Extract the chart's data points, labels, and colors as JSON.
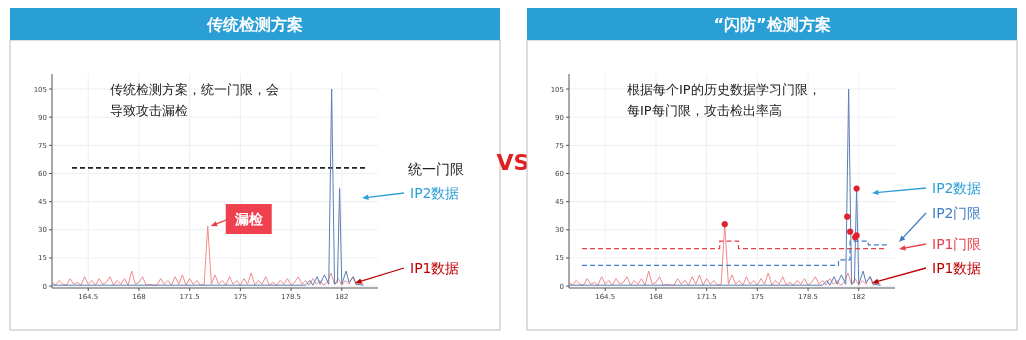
{
  "chart_data": [
    {
      "type": "line",
      "title": "传统检测方案",
      "xlim": [
        162,
        184.5
      ],
      "ylim": [
        -1,
        113
      ],
      "xticks": [
        164.5,
        168,
        171.5,
        175,
        178.5,
        182
      ],
      "yticks": [
        0,
        15,
        30,
        45,
        60,
        75,
        90,
        105
      ],
      "grid": true,
      "legend": "right",
      "marker": "none",
      "annotations": [
        "传统检测方案，统一门限，会导致攻击漏检",
        {
          "text": "漏检",
          "x": 172.75,
          "y": 32
        }
      ],
      "ref_lines": [
        {
          "axis": "y",
          "value": 63,
          "label": "统一门限",
          "color": "#222222",
          "line_style": "dashed"
        }
      ],
      "series": [
        {
          "name": "IP1数据",
          "color": "#f28b8b",
          "x": [
            162,
            162.25,
            162.5,
            162.75,
            163,
            163.25,
            163.5,
            163.75,
            164,
            164.25,
            164.5,
            164.75,
            165,
            165.25,
            165.5,
            165.75,
            166,
            166.25,
            166.5,
            166.75,
            167,
            167.25,
            167.5,
            167.75,
            168,
            168.25,
            168.5,
            168.75,
            169,
            169.25,
            169.5,
            169.75,
            170,
            170.25,
            170.5,
            170.75,
            171,
            171.25,
            171.5,
            171.75,
            172,
            172.25,
            172.5,
            172.75,
            173,
            173.25,
            173.5,
            173.75,
            174,
            174.25,
            174.5,
            174.75,
            175,
            175.25,
            175.5,
            175.75,
            176,
            176.25,
            176.5,
            176.75,
            177,
            177.25,
            177.5,
            177.75,
            178,
            178.25,
            178.5,
            178.75,
            179,
            179.25,
            179.5,
            179.75,
            180,
            180.25,
            180.5,
            180.75,
            181,
            181.25,
            181.5,
            181.75,
            182,
            182.25,
            182.5,
            182.75,
            183,
            183.25,
            183.5
          ],
          "values": [
            2,
            0.5,
            3,
            1,
            0.5,
            4,
            1,
            2,
            0.5,
            5,
            1,
            3,
            0.5,
            4,
            1,
            2,
            5,
            0.5,
            3,
            1,
            4,
            0.5,
            8,
            1,
            2,
            5,
            0.5,
            1,
            0.5,
            0.5,
            4,
            1,
            3,
            0.5,
            5,
            1,
            6,
            0.5,
            4,
            1,
            3,
            0.5,
            1,
            32,
            1,
            6,
            1,
            3,
            0.5,
            5,
            1,
            3,
            0.5,
            4,
            1,
            7,
            0.5,
            3,
            1,
            5,
            0.5,
            2,
            0.5,
            3,
            1,
            4,
            0.5,
            2,
            5,
            1,
            3,
            0.5,
            4,
            1,
            3,
            0.5,
            2,
            7,
            1,
            4,
            0.5,
            3,
            1,
            5,
            0.5,
            2,
            1
          ]
        },
        {
          "name": "IP2数据",
          "color": "#5b7fb5",
          "x": [
            162,
            179.5,
            179.8,
            180,
            180.3,
            180.5,
            180.8,
            181.1,
            181.3,
            181.5,
            181.7,
            181.85,
            182,
            182.3,
            182.5,
            182.8,
            183,
            183.5
          ],
          "values": [
            0.5,
            0.5,
            3,
            0.5,
            5,
            1,
            6,
            1,
            105,
            1,
            2,
            52,
            1,
            8,
            2,
            5,
            1,
            0.5
          ]
        }
      ]
    },
    {
      "type": "other",
      "title": "VS"
    },
    {
      "type": "line",
      "title": "“闪防”检测方案",
      "xlim": [
        162,
        184.5
      ],
      "ylim": [
        -1,
        113
      ],
      "xticks": [
        164.5,
        168,
        171.5,
        175,
        178.5,
        182
      ],
      "yticks": [
        0,
        15,
        30,
        45,
        60,
        75,
        90,
        105
      ],
      "grid": true,
      "legend": "right",
      "annotations": [
        "根据每个IP的历史数据学习门限，每IP每门限，攻击检出率高"
      ],
      "series": [
        {
          "name": "IP1数据",
          "color": "#f28b8b",
          "marker": "none",
          "x": [
            162,
            162.25,
            162.5,
            162.75,
            163,
            163.25,
            163.5,
            163.75,
            164,
            164.25,
            164.5,
            164.75,
            165,
            165.25,
            165.5,
            165.75,
            166,
            166.25,
            166.5,
            166.75,
            167,
            167.25,
            167.5,
            167.75,
            168,
            168.25,
            168.5,
            168.75,
            169,
            169.25,
            169.5,
            169.75,
            170,
            170.25,
            170.5,
            170.75,
            171,
            171.25,
            171.5,
            171.75,
            172,
            172.25,
            172.5,
            172.75,
            173,
            173.25,
            173.5,
            173.75,
            174,
            174.25,
            174.5,
            174.75,
            175,
            175.25,
            175.5,
            175.75,
            176,
            176.25,
            176.5,
            176.75,
            177,
            177.25,
            177.5,
            177.75,
            178,
            178.25,
            178.5,
            178.75,
            179,
            179.25,
            179.5,
            179.75,
            180,
            180.25,
            180.5,
            180.75,
            181,
            181.25,
            181.5,
            181.75,
            182,
            182.25,
            182.5,
            182.75,
            183,
            183.25,
            183.5
          ],
          "values": [
            2,
            0.5,
            3,
            1,
            0.5,
            4,
            1,
            2,
            0.5,
            5,
            1,
            3,
            0.5,
            4,
            1,
            2,
            5,
            0.5,
            3,
            1,
            4,
            0.5,
            8,
            1,
            2,
            5,
            0.5,
            1,
            0.5,
            0.5,
            4,
            1,
            3,
            0.5,
            5,
            1,
            6,
            0.5,
            4,
            1,
            3,
            0.5,
            1,
            33,
            1,
            6,
            1,
            3,
            0.5,
            5,
            1,
            3,
            0.5,
            4,
            1,
            7,
            0.5,
            3,
            1,
            5,
            0.5,
            2,
            0.5,
            3,
            1,
            4,
            0.5,
            2,
            5,
            1,
            3,
            0.5,
            4,
            1,
            3,
            0.5,
            2,
            7,
            1,
            4,
            0.5,
            3,
            1,
            5,
            0.5,
            2,
            1
          ]
        },
        {
          "name": "IP2数据",
          "color": "#5b7fb5",
          "marker": "none",
          "x": [
            162,
            179.5,
            179.8,
            180,
            180.3,
            180.5,
            180.8,
            181.1,
            181.3,
            181.5,
            181.7,
            181.85,
            182,
            182.3,
            182.5,
            182.8,
            183,
            183.5
          ],
          "values": [
            0.5,
            0.5,
            3,
            0.5,
            5,
            1,
            6,
            1,
            105,
            1,
            2,
            52,
            1,
            8,
            2,
            5,
            1,
            0.5
          ]
        },
        {
          "name": "IP1门限",
          "type": "step",
          "color": "#e8404a",
          "line_style": "dashed",
          "marker": "none",
          "x": [
            162.9,
            172.4,
            173.7,
            183.9
          ],
          "values": [
            20,
            24,
            20,
            20
          ]
        },
        {
          "name": "IP2门限",
          "type": "step",
          "color": "#3d7ec4",
          "line_style": "dashed",
          "marker": "none",
          "x": [
            162.9,
            180.6,
            181.4,
            182.65,
            184
          ],
          "values": [
            11,
            14,
            24,
            22,
            22
          ]
        },
        {
          "type": "scatter",
          "color": "#e02030",
          "marker": "circle",
          "x": [
            172.75,
            181.2,
            181.4,
            181.75,
            181.85,
            181.85
          ],
          "values": [
            33,
            37,
            29,
            26,
            27,
            52
          ]
        }
      ]
    }
  ]
}
